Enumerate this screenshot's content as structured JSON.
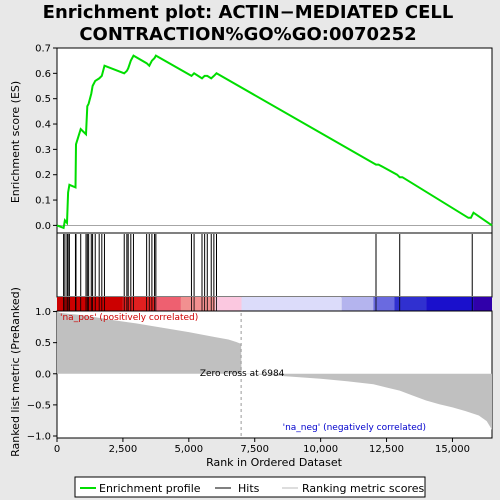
{
  "chart_data": {
    "type": "line",
    "title_line1": "Enrichment plot: ACTIN−MEDIATED CELL",
    "title_line2": "CONTRACTION%GO%GO:0070252",
    "top_panel": {
      "ylabel": "Enrichment score (ES)",
      "ylim": [
        -0.03,
        0.7
      ],
      "yticks": [
        0.0,
        0.1,
        0.2,
        0.3,
        0.4,
        0.5,
        0.6,
        0.7
      ],
      "ytick_labels": [
        "0.0",
        "0.1",
        "0.2",
        "0.3",
        "0.4",
        "0.5",
        "0.6",
        "0.7"
      ],
      "series": [
        {
          "name": "Enrichment profile",
          "color": "#00dd00",
          "x": [
            0,
            250,
            300,
            380,
            420,
            470,
            700,
            720,
            900,
            1100,
            1150,
            1200,
            1300,
            1350,
            1450,
            1600,
            1700,
            1800,
            2550,
            2650,
            2700,
            2800,
            2900,
            3400,
            3500,
            3600,
            3700,
            3750,
            5100,
            5200,
            5500,
            5600,
            5700,
            5850,
            5950,
            6050,
            12100,
            12200,
            12900,
            13000,
            13100,
            15600,
            15700,
            15800,
            16500
          ],
          "y": [
            0.0,
            -0.01,
            0.02,
            0.01,
            0.13,
            0.16,
            0.15,
            0.32,
            0.38,
            0.36,
            0.47,
            0.48,
            0.52,
            0.55,
            0.57,
            0.58,
            0.59,
            0.63,
            0.6,
            0.61,
            0.62,
            0.65,
            0.67,
            0.64,
            0.63,
            0.65,
            0.66,
            0.67,
            0.59,
            0.6,
            0.58,
            0.59,
            0.59,
            0.58,
            0.59,
            0.6,
            0.24,
            0.24,
            0.2,
            0.19,
            0.19,
            0.03,
            0.03,
            0.05,
            0.0
          ]
        }
      ]
    },
    "hits_x": [
      250,
      300,
      380,
      420,
      470,
      700,
      720,
      900,
      1100,
      1150,
      1200,
      1300,
      1350,
      1450,
      1600,
      1700,
      1800,
      2550,
      2650,
      2700,
      2800,
      2900,
      3400,
      3500,
      3600,
      3700,
      3750,
      5100,
      5200,
      5500,
      5600,
      5700,
      5850,
      5950,
      6050,
      12100,
      13000,
      15750
    ],
    "bottom_panel": {
      "ylabel": "Ranked list metric (PreRanked)",
      "ylim": [
        -1.0,
        1.0
      ],
      "yticks": [
        -1.0,
        -0.5,
        0.0,
        0.5,
        1.0
      ],
      "ytick_labels": [
        "−1.0",
        "−0.5",
        "0.0",
        "0.5",
        "1.0"
      ],
      "metric_x": [
        0,
        100,
        500,
        1000,
        2000,
        3000,
        4000,
        5000,
        6000,
        6500,
        6800,
        6984,
        7000,
        8000,
        9000,
        10000,
        11000,
        12000,
        12500,
        13000,
        13500,
        14000,
        14500,
        15000,
        15500,
        16000,
        16300,
        16500
      ],
      "metric_y": [
        1.0,
        0.98,
        0.96,
        0.94,
        0.87,
        0.81,
        0.74,
        0.67,
        0.59,
        0.55,
        0.51,
        0.48,
        0.0,
        -0.02,
        -0.05,
        -0.08,
        -0.12,
        -0.17,
        -0.22,
        -0.27,
        -0.35,
        -0.43,
        -0.49,
        -0.54,
        -0.6,
        -0.67,
        -0.76,
        -0.9
      ],
      "annotation_pos": "'na_pos' (positively correlated)",
      "annotation_neg": "'na_neg' (negatively correlated)",
      "zero_cross_label": "Zero cross at 6984",
      "zero_cross": 6984
    },
    "xlabel": "Rank in Ordered Dataset",
    "xlim": [
      0,
      16500
    ],
    "xticks": [
      0,
      2500,
      5000,
      7500,
      10000,
      12500,
      15000
    ],
    "xtick_labels": [
      "0",
      "2,500",
      "5,000",
      "7,500",
      "10,000",
      "12,500",
      "15,000"
    ],
    "legend": {
      "placement": "bottom",
      "items": [
        {
          "label": "Enrichment profile",
          "color": "#00dd00"
        },
        {
          "label": "Hits",
          "color": "#000000"
        },
        {
          "label": "Ranking metric scores",
          "color": "#bbbbbb"
        }
      ]
    },
    "colors": {
      "positive_band": "#cc0000",
      "negative_band": "#0000cc",
      "background": "#e8e8e8",
      "metric_fill": "#c0c0c0"
    }
  }
}
